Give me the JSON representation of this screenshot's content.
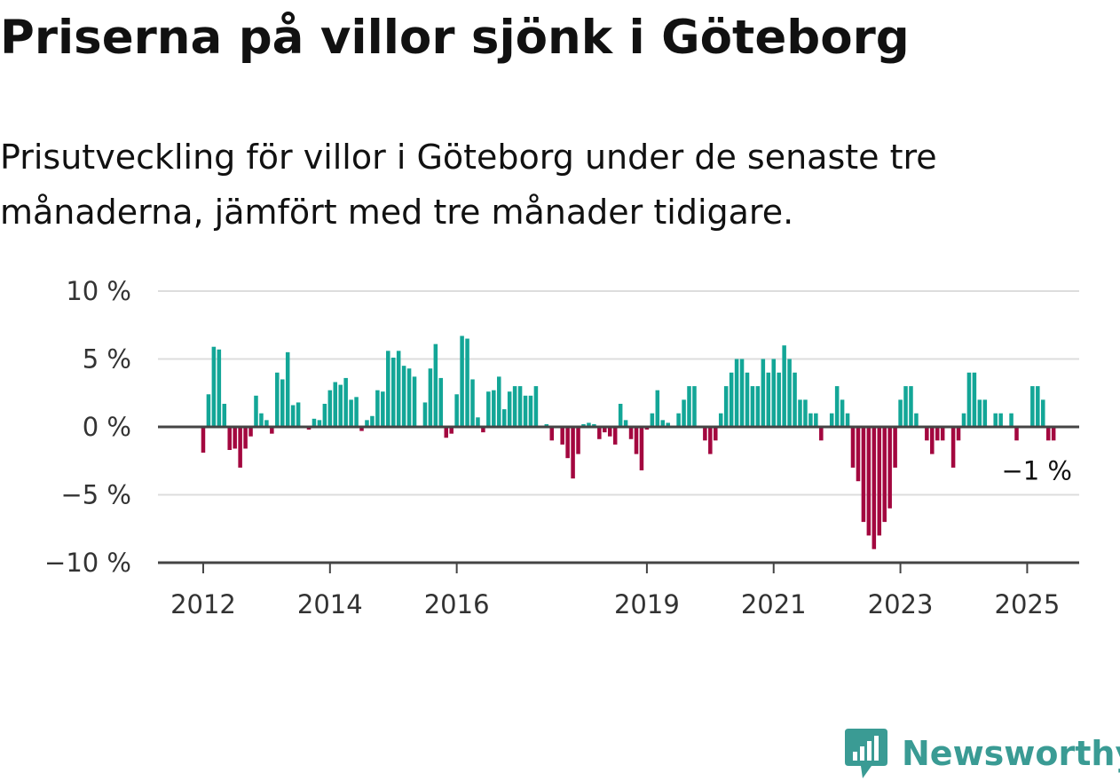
{
  "header": {
    "title": "Priserna på villor sjönk i Göteborg",
    "subtitle": "Prisutveckling för villor i Göteborg under de senaste tre månaderna, jämfört med tre månader tidigare."
  },
  "branding": {
    "name": "Newsworthy",
    "logo_icon": "newsworthy-logo-icon",
    "color": "#3a9b94"
  },
  "chart_data": {
    "type": "bar",
    "title": "",
    "xlabel": "",
    "ylabel": "",
    "x_start": "2012-01",
    "x_end": "2025-09",
    "ylim": [
      -10,
      10
    ],
    "y_ticks": [
      10,
      5,
      0,
      -5,
      -10
    ],
    "y_tick_labels": [
      "10 %",
      "5 %",
      "0 %",
      "−5 %",
      "−10 %"
    ],
    "x_ticks": [
      "2012-01",
      "2014-01",
      "2016-01",
      "2019-01",
      "2021-01",
      "2023-01",
      "2025-01"
    ],
    "x_tick_labels": [
      "2012",
      "2014",
      "2016",
      "2019",
      "2021",
      "2023",
      "2025"
    ],
    "grid": true,
    "colors": {
      "positive": "#13a697",
      "negative": "#a3073f"
    },
    "last_value_label": "−1 %",
    "values": [
      -1.9,
      2.4,
      5.9,
      5.7,
      1.7,
      -1.7,
      -1.6,
      -3.0,
      -1.6,
      -0.7,
      2.3,
      1.0,
      0.5,
      -0.5,
      4.0,
      3.5,
      5.5,
      1.6,
      1.8,
      0.0,
      -0.2,
      0.6,
      0.5,
      1.7,
      2.7,
      3.3,
      3.1,
      3.6,
      2.0,
      2.2,
      -0.3,
      0.5,
      0.8,
      2.7,
      2.6,
      5.6,
      5.1,
      5.6,
      4.5,
      4.3,
      3.7,
      0.0,
      1.8,
      4.3,
      6.1,
      3.6,
      -0.8,
      -0.5,
      2.4,
      6.7,
      6.5,
      3.5,
      0.7,
      -0.4,
      2.6,
      2.7,
      3.7,
      1.3,
      2.6,
      3.0,
      3.0,
      2.3,
      2.3,
      3.0,
      0.0,
      0.2,
      -1.0,
      0.0,
      -1.3,
      -2.3,
      -3.8,
      -2.0,
      0.2,
      0.3,
      0.2,
      -0.9,
      -0.4,
      -0.7,
      -1.3,
      1.7,
      0.5,
      -0.9,
      -2.0,
      -3.2,
      -0.2,
      1.0,
      2.7,
      0.5,
      0.3,
      0.0,
      1.0,
      2.0,
      3.0,
      3.0,
      0.0,
      -1.0,
      -2.0,
      -1.0,
      1.0,
      3.0,
      4.0,
      5.0,
      5.0,
      4.0,
      3.0,
      3.0,
      5.0,
      4.0,
      5.0,
      4.0,
      6.0,
      5.0,
      4.0,
      2.0,
      2.0,
      1.0,
      1.0,
      -1.0,
      0.0,
      1.0,
      3.0,
      2.0,
      1.0,
      -3.0,
      -4.0,
      -7.0,
      -8.0,
      -9.0,
      -8.0,
      -7.0,
      -6.0,
      -3.0,
      2.0,
      3.0,
      3.0,
      1.0,
      0.0,
      -1.0,
      -2.0,
      -1.0,
      -1.0,
      0.0,
      -3.0,
      -1.0,
      1.0,
      4.0,
      4.0,
      2.0,
      2.0,
      0.0,
      1.0,
      1.0,
      0.0,
      1.0,
      -1.0,
      0.0,
      0.0,
      3.0,
      3.0,
      2.0,
      -1.0,
      -1.0
    ]
  }
}
